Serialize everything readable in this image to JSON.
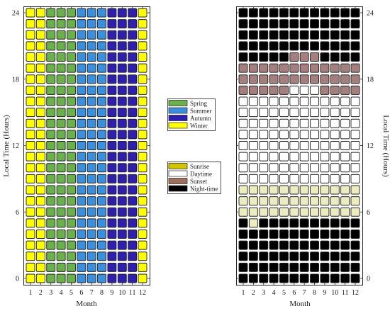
{
  "chart_data": [
    {
      "type": "heatmap",
      "title": "",
      "xlabel": "Month",
      "ylabel": "Local Time (Hours)",
      "x": [
        1,
        2,
        3,
        4,
        5,
        6,
        7,
        8,
        9,
        10,
        11,
        12
      ],
      "y_hours": [
        0,
        1,
        2,
        3,
        4,
        5,
        6,
        7,
        8,
        9,
        10,
        11,
        12,
        13,
        14,
        15,
        16,
        17,
        18,
        19,
        20,
        21,
        22,
        23,
        24
      ],
      "x_ticks": [
        "1",
        "2",
        "3",
        "4",
        "5",
        "6",
        "7",
        "8",
        "9",
        "10",
        "11",
        "12"
      ],
      "y_ticks": [
        0,
        6,
        12,
        18,
        24
      ],
      "ylim": [
        0,
        24
      ],
      "xlim": [
        1,
        12
      ],
      "category_by_month": [
        "Winter",
        "Winter",
        "Spring",
        "Spring",
        "Spring",
        "Summer",
        "Summer",
        "Summer",
        "Autumn",
        "Autumn",
        "Autumn",
        "Winter"
      ],
      "legend": [
        {
          "label": "Spring",
          "color": "#6ab04c"
        },
        {
          "label": "Summer",
          "color": "#3a8fde"
        },
        {
          "label": "Autumn",
          "color": "#2f1fae"
        },
        {
          "label": "Winter",
          "color": "#ffff00"
        }
      ]
    },
    {
      "type": "heatmap",
      "title": "",
      "xlabel": "Month",
      "ylabel": "Local Time (Hours)",
      "x": [
        1,
        2,
        3,
        4,
        5,
        6,
        7,
        8,
        9,
        10,
        11,
        12
      ],
      "y_hours": [
        0,
        1,
        2,
        3,
        4,
        5,
        6,
        7,
        8,
        9,
        10,
        11,
        12,
        13,
        14,
        15,
        16,
        17,
        18,
        19,
        20,
        21,
        22,
        23,
        24
      ],
      "x_ticks": [
        "1",
        "2",
        "3",
        "4",
        "5",
        "6",
        "7",
        "8",
        "9",
        "10",
        "11",
        "12"
      ],
      "y_ticks": [
        0,
        6,
        12,
        18,
        24
      ],
      "ylim": [
        0,
        24
      ],
      "xlim": [
        1,
        12
      ],
      "category_codes": {
        "R": "Sunrise",
        "D": "Daytime",
        "S": "Sunset",
        "N": "Night-time"
      },
      "rows_by_hour": [
        "NNNNNNNNNNNN",
        "NNNNNNNNNNNN",
        "NNNNNNNNNNNN",
        "NNNNNNNNNNNN",
        "NNNNNNNNNNNN",
        "NRNNNNNNNNNN",
        "RRRRRRRRRRRR",
        "RRRRRRRRRRRR",
        "RRRRRRRRRRRR",
        "DDDDDDDDDDDD",
        "DDDDDDDDDDDD",
        "DDDDDDDDDDDD",
        "DDDDDDDDDDDD",
        "DDDDDDDDDDDD",
        "DDDDDDDDDDDD",
        "DDDDDDDDDDDD",
        "DDDDDDDDDDDD",
        "SSSSSDDDSSSS",
        "SSSSSSSSSSSS",
        "SSSSSSSSSSSS",
        "NNNNNSSSNNNN",
        "NNNNNNNNNNNN",
        "NNNNNNNNNNNN",
        "NNNNNNNNNNNN",
        "NNNNNNNNNNNN"
      ],
      "legend": [
        {
          "label": "Sunrise",
          "color": "#cfc600"
        },
        {
          "label": "Daytime",
          "color": "#ffffff"
        },
        {
          "label": "Sunset",
          "color": "#a0705e"
        },
        {
          "label": "Night-time",
          "color": "#000000"
        }
      ],
      "cell_colors": {
        "Sunrise": "#ececc0",
        "Daytime": "#ffffff",
        "Sunset": "#a57e7e",
        "Night-time": "#000000"
      }
    }
  ]
}
